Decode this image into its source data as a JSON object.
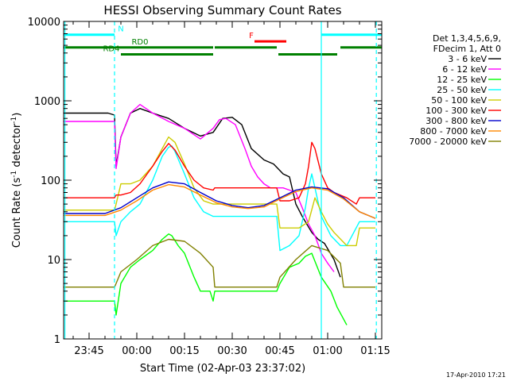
{
  "chart_data": {
    "type": "line",
    "title": "HESSI Observing Summary Count Rates",
    "xlabel": "Start Time (02-Apr-03 23:37:02)",
    "ylabel": "Count Rate (s",
    "ylabel_sup": "-1",
    "ylabel_mid": " detector",
    "ylabel_sup2": "-1",
    "ylabel_end": ")",
    "y_scale": "log",
    "ylim": [
      1,
      10000
    ],
    "xlim_minutes": [
      -23,
      77
    ],
    "y_ticks": [
      {
        "value": 1,
        "label": "1"
      },
      {
        "value": 10,
        "label": "10"
      },
      {
        "value": 100,
        "label": "100"
      },
      {
        "value": 1000,
        "label": "1000"
      },
      {
        "value": 10000,
        "label": "10000"
      }
    ],
    "x_ticks": [
      {
        "value": -15,
        "label": "23:45"
      },
      {
        "value": 0,
        "label": "00:00"
      },
      {
        "value": 15,
        "label": "00:15"
      },
      {
        "value": 30,
        "label": "00:30"
      },
      {
        "value": 45,
        "label": "00:45"
      },
      {
        "value": 60,
        "label": "01:00"
      },
      {
        "value": 75,
        "label": "01:15"
      }
    ],
    "legend_header": [
      "Det 1,3,4,5,6,9,",
      "FDecim 1, Att 0"
    ],
    "legend_placement": "right",
    "series": [
      {
        "name": "3 - 6 keV",
        "color": "#000000",
        "x": [
          -23,
          -18,
          -9,
          -7,
          -6.5,
          -5,
          -2,
          1,
          5,
          10,
          15,
          20,
          24,
          27,
          30,
          33,
          36,
          40,
          43,
          46,
          48,
          50,
          52,
          55,
          57,
          59,
          62,
          64
        ],
        "y": [
          700,
          700,
          700,
          660,
          150,
          350,
          700,
          800,
          700,
          600,
          450,
          360,
          400,
          600,
          620,
          500,
          250,
          180,
          160,
          120,
          110,
          50,
          35,
          22,
          18,
          16,
          10,
          6
        ]
      },
      {
        "name": "6 - 12 keV",
        "color": "#ff00ff",
        "x": [
          -23,
          -7,
          -6.5,
          -5,
          -2,
          1,
          5,
          10,
          15,
          20,
          24,
          26,
          28,
          31,
          34,
          36,
          38,
          40,
          42,
          44,
          46,
          48,
          50,
          52,
          54,
          56,
          58,
          60,
          62
        ],
        "y": [
          550,
          550,
          140,
          350,
          700,
          900,
          700,
          550,
          450,
          330,
          450,
          580,
          600,
          500,
          250,
          150,
          110,
          90,
          80,
          80,
          80,
          75,
          70,
          45,
          28,
          20,
          12,
          9,
          7
        ]
      },
      {
        "name": "12 - 25 keV",
        "color": "#00ff00",
        "x": [
          -23,
          -7,
          -6.5,
          -5,
          -2,
          1,
          5,
          8,
          10,
          11,
          13,
          15,
          18,
          20,
          23,
          24,
          24.5,
          30,
          35,
          40,
          44,
          45,
          48,
          51,
          53,
          55,
          58,
          61,
          63,
          66
        ],
        "y": [
          3,
          3,
          2,
          5,
          8,
          10,
          13,
          18,
          21,
          20,
          15,
          12,
          6,
          4,
          4,
          3,
          4,
          4,
          4,
          4,
          4,
          5,
          8,
          9,
          11,
          12,
          6,
          4,
          2.5,
          1.5
        ]
      },
      {
        "name": "25 - 50 keV",
        "color": "#00ffff",
        "x": [
          -23,
          -7,
          -6.5,
          -5,
          -2,
          1,
          5,
          8,
          10,
          11,
          12,
          15,
          18,
          21,
          24,
          24.5,
          30,
          35,
          40,
          44,
          45,
          48,
          51,
          53,
          54,
          55,
          56,
          58,
          61,
          64,
          66,
          70,
          75
        ],
        "y": [
          30,
          30,
          20,
          30,
          40,
          50,
          100,
          200,
          260,
          270,
          230,
          120,
          60,
          40,
          35,
          35,
          35,
          35,
          35,
          35,
          13,
          15,
          20,
          45,
          80,
          120,
          80,
          35,
          20,
          15,
          15,
          30,
          30
        ]
      },
      {
        "name": "50 - 100 keV",
        "color": "#cccc00",
        "x": [
          -23,
          -7,
          -6.5,
          -5,
          -2,
          1,
          5,
          8,
          10,
          12,
          15,
          18,
          21,
          24,
          24.5,
          30,
          35,
          40,
          44,
          45,
          48,
          51,
          54,
          56,
          58,
          60,
          62,
          66,
          69,
          70,
          75
        ],
        "y": [
          42,
          42,
          50,
          90,
          90,
          100,
          150,
          250,
          350,
          300,
          160,
          80,
          55,
          50,
          50,
          50,
          50,
          50,
          50,
          25,
          25,
          25,
          30,
          60,
          40,
          28,
          22,
          15,
          15,
          25,
          25
        ]
      },
      {
        "name": "100 - 300 keV",
        "color": "#ff0000",
        "x": [
          -23,
          -7,
          -6.5,
          -5,
          -2,
          1,
          5,
          8,
          10,
          12,
          15,
          18,
          21,
          24,
          24.5,
          30,
          35,
          40,
          44,
          45,
          48,
          51,
          53,
          54,
          55,
          56,
          58,
          60,
          62,
          66,
          69,
          70,
          75
        ],
        "y": [
          60,
          60,
          65,
          65,
          70,
          90,
          150,
          230,
          290,
          240,
          150,
          100,
          80,
          75,
          80,
          80,
          80,
          80,
          80,
          55,
          55,
          60,
          90,
          150,
          300,
          250,
          120,
          80,
          70,
          60,
          50,
          60,
          60
        ]
      },
      {
        "name": "300 - 800 keV",
        "color": "#0000cc",
        "x": [
          -23,
          -10,
          -5,
          0,
          5,
          10,
          15,
          20,
          25,
          30,
          35,
          40,
          45,
          50,
          55,
          60,
          65,
          70,
          75
        ],
        "y": [
          38,
          38,
          45,
          60,
          80,
          95,
          90,
          70,
          55,
          48,
          45,
          48,
          60,
          75,
          82,
          78,
          60,
          40,
          33
        ]
      },
      {
        "name": "800 - 7000 keV",
        "color": "#ff8800",
        "x": [
          -23,
          -10,
          -5,
          0,
          5,
          10,
          15,
          20,
          25,
          30,
          35,
          40,
          45,
          50,
          55,
          60,
          65,
          70,
          75
        ],
        "y": [
          36,
          36,
          42,
          55,
          75,
          88,
          82,
          65,
          52,
          46,
          44,
          46,
          58,
          72,
          80,
          75,
          58,
          40,
          33
        ]
      },
      {
        "name": "7000 - 20000 keV",
        "color": "#808000",
        "x": [
          -23,
          -7,
          -6.5,
          -5,
          0,
          5,
          10,
          15,
          20,
          24,
          24.5,
          30,
          35,
          40,
          44,
          45,
          50,
          55,
          60,
          64,
          65,
          70,
          75
        ],
        "y": [
          4.5,
          4.5,
          5,
          7,
          10,
          15,
          18,
          17,
          12,
          8,
          4.5,
          4.5,
          4.5,
          4.5,
          4.5,
          6,
          10,
          15,
          13,
          9,
          4.5,
          4.5,
          4.5
        ]
      }
    ],
    "flag_bars": [
      {
        "label": "N",
        "color": "#00ffff",
        "label_at": -5,
        "segments": [
          [
            -23,
            -7
          ],
          [
            58,
            77
          ]
        ],
        "y": 6800
      },
      {
        "label": "F",
        "color": "#ff0000",
        "label_at": 36,
        "segments": [
          [
            37,
            47
          ]
        ],
        "y": 5600
      },
      {
        "label": "RD0",
        "color": "#008000",
        "label_at": 1,
        "segments": [
          [
            -23,
            24
          ],
          [
            24.5,
            44
          ],
          [
            64,
            77
          ]
        ],
        "y": 4700
      },
      {
        "label": "RD4",
        "color": "#008000",
        "label_at": -8,
        "segments": [
          [
            -5,
            24
          ],
          [
            44.5,
            63
          ]
        ],
        "y": 3850
      }
    ],
    "vertical_lines": [
      {
        "x": -22.6,
        "color": "#00ffff",
        "style": "solid"
      },
      {
        "x": -7,
        "color": "#00ffff",
        "style": "dashed"
      },
      {
        "x": 58,
        "color": "#00ffff",
        "style": "solid"
      },
      {
        "x": 75.3,
        "color": "#00ffff",
        "style": "dashed"
      }
    ],
    "grid": false
  },
  "footer": {
    "stamp": "17-Apr-2010 17:21"
  }
}
